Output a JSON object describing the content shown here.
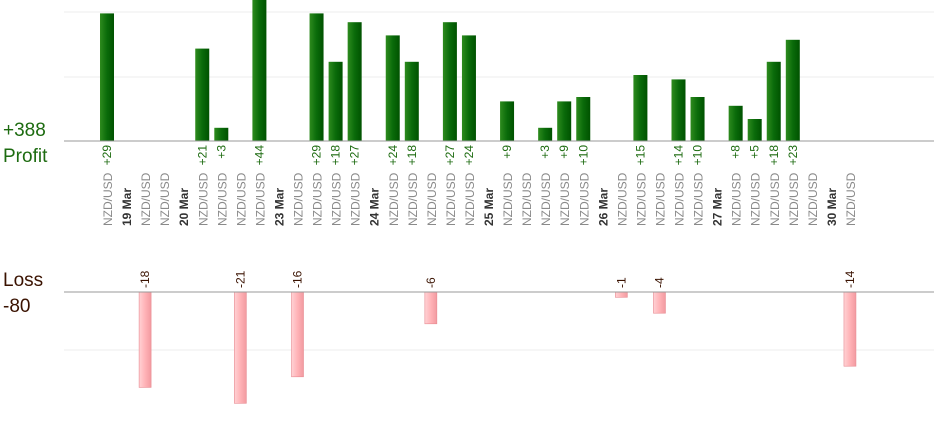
{
  "profit_total": "+388",
  "profit_label": "Profit",
  "loss_label": "Loss",
  "loss_total": "-80",
  "colors": {
    "profit_bar": "#0a6b0a",
    "profit_text": "#1d6b10",
    "loss_bar": "#ffb3b7",
    "loss_text": "#3a1200",
    "date_text": "#333333",
    "pair_text": "#8a8a8a",
    "grid": "#eeeeee",
    "axis": "#999999"
  },
  "chart_data": {
    "type": "bar",
    "profit_axis": {
      "ylim": [
        0,
        55
      ],
      "grid": true
    },
    "loss_axis": {
      "ylim": [
        -26,
        0
      ],
      "grid": true
    },
    "columns": [
      {
        "kind": "trade",
        "label": "NZD/USD",
        "value": 29
      },
      {
        "kind": "date",
        "label": "19 Mar"
      },
      {
        "kind": "trade",
        "label": "NZD/USD",
        "value": -18
      },
      {
        "kind": "trade",
        "label": "NZD/USD",
        "value": 0
      },
      {
        "kind": "date",
        "label": "20 Mar"
      },
      {
        "kind": "trade",
        "label": "NZD/USD",
        "value": 21
      },
      {
        "kind": "trade",
        "label": "NZD/USD",
        "value": 3
      },
      {
        "kind": "trade",
        "label": "NZD/USD",
        "value": -21
      },
      {
        "kind": "trade",
        "label": "NZD/USD",
        "value": 44
      },
      {
        "kind": "date",
        "label": "23 Mar"
      },
      {
        "kind": "trade",
        "label": "NZD/USD",
        "value": -16
      },
      {
        "kind": "trade",
        "label": "NZD/USD",
        "value": 29
      },
      {
        "kind": "trade",
        "label": "NZD/USD",
        "value": 18
      },
      {
        "kind": "trade",
        "label": "NZD/USD",
        "value": 27
      },
      {
        "kind": "date",
        "label": "24 Mar"
      },
      {
        "kind": "trade",
        "label": "NZD/USD",
        "value": 24
      },
      {
        "kind": "trade",
        "label": "NZD/USD",
        "value": 18
      },
      {
        "kind": "trade",
        "label": "NZD/USD",
        "value": -6
      },
      {
        "kind": "trade",
        "label": "NZD/USD",
        "value": 27
      },
      {
        "kind": "trade",
        "label": "NZD/USD",
        "value": 24
      },
      {
        "kind": "date",
        "label": "25 Mar"
      },
      {
        "kind": "trade",
        "label": "NZD/USD",
        "value": 9
      },
      {
        "kind": "trade",
        "label": "NZD/USD",
        "value": 0
      },
      {
        "kind": "trade",
        "label": "NZD/USD",
        "value": 3
      },
      {
        "kind": "trade",
        "label": "NZD/USD",
        "value": 9
      },
      {
        "kind": "trade",
        "label": "NZD/USD",
        "value": 10
      },
      {
        "kind": "date",
        "label": "26 Mar"
      },
      {
        "kind": "trade",
        "label": "NZD/USD",
        "value": -1
      },
      {
        "kind": "trade",
        "label": "NZD/USD",
        "value": 15
      },
      {
        "kind": "trade",
        "label": "NZD/USD",
        "value": -4
      },
      {
        "kind": "trade",
        "label": "NZD/USD",
        "value": 14
      },
      {
        "kind": "trade",
        "label": "NZD/USD",
        "value": 10
      },
      {
        "kind": "date",
        "label": "27 Mar"
      },
      {
        "kind": "trade",
        "label": "NZD/USD",
        "value": 8
      },
      {
        "kind": "trade",
        "label": "NZD/USD",
        "value": 5
      },
      {
        "kind": "trade",
        "label": "NZD/USD",
        "value": 18
      },
      {
        "kind": "trade",
        "label": "NZD/USD",
        "value": 23
      },
      {
        "kind": "trade",
        "label": "NZD/USD",
        "value": 0
      },
      {
        "kind": "date",
        "label": "30 Mar"
      },
      {
        "kind": "trade",
        "label": "NZD/USD",
        "value": -14
      }
    ]
  }
}
